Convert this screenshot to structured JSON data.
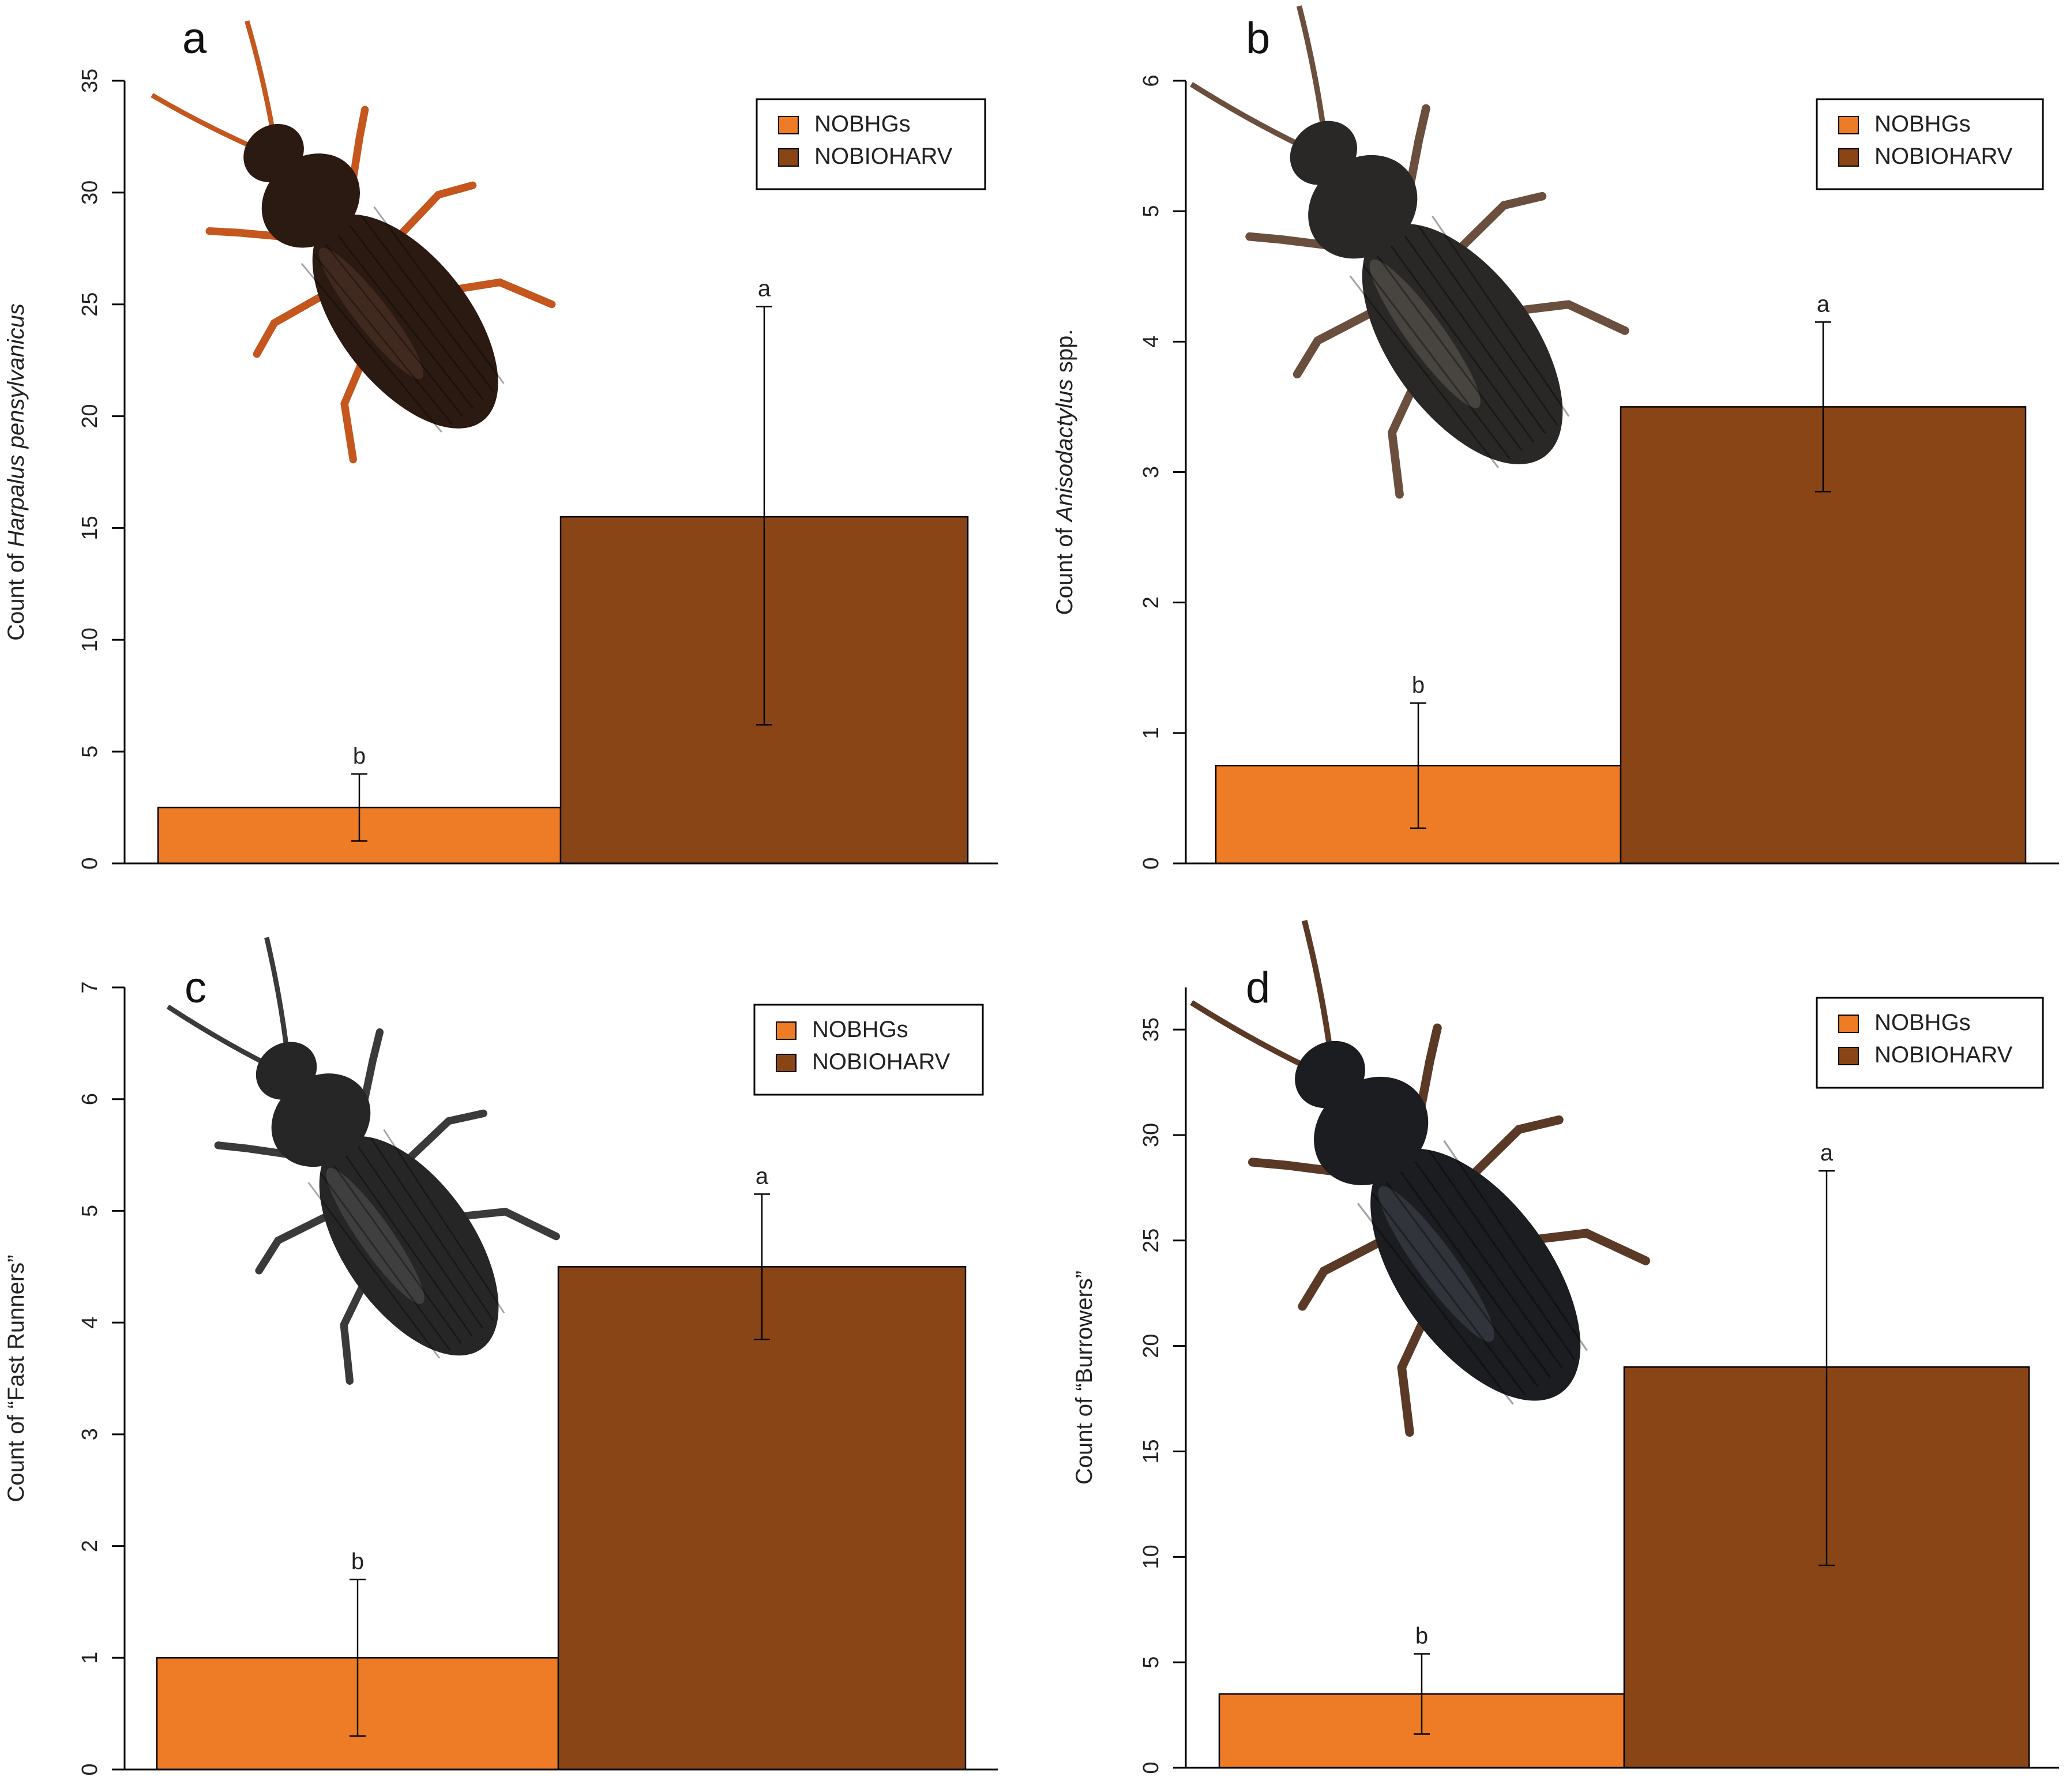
{
  "figure": {
    "colors": {
      "nobhgs": "#EE7B26",
      "nobioharv": "#8A4516",
      "axis": "#000000"
    }
  },
  "chart_data": [
    {
      "type": "bar",
      "panel": "a",
      "ylabel_prefix": "Count of ",
      "ylabel_italic": "Harpalus pensylvanicus",
      "ylabel_suffix": "",
      "categories": [
        "NOBHGs",
        "NOBIOHARV"
      ],
      "values": [
        2.5,
        15.5
      ],
      "errors_low": [
        1.0,
        6.2
      ],
      "errors_high": [
        4.0,
        24.9
      ],
      "significance": [
        "b",
        "a"
      ],
      "ylim": [
        0,
        35
      ],
      "yticks": [
        0,
        5,
        10,
        15,
        20,
        25,
        30,
        35
      ],
      "legend": [
        "NOBHGs",
        "NOBIOHARV"
      ],
      "legend_position": "top-right",
      "beetle_icon": "harpalus-beetle-icon"
    },
    {
      "type": "bar",
      "panel": "b",
      "ylabel_prefix": "Count of ",
      "ylabel_italic": "Anisodactylus",
      "ylabel_suffix": " spp.",
      "categories": [
        "NOBHGs",
        "NOBIOHARV"
      ],
      "values": [
        0.75,
        3.5
      ],
      "errors_low": [
        0.27,
        2.85
      ],
      "errors_high": [
        1.23,
        4.15
      ],
      "significance": [
        "b",
        "a"
      ],
      "ylim": [
        0,
        6
      ],
      "yticks": [
        0,
        1,
        2,
        3,
        4,
        5,
        6
      ],
      "legend": [
        "NOBHGs",
        "NOBIOHARV"
      ],
      "legend_position": "top-right",
      "beetle_icon": "anisodactylus-beetle-icon"
    },
    {
      "type": "bar",
      "panel": "c",
      "ylabel_prefix": "Count of “Fast Runners”",
      "ylabel_italic": "",
      "ylabel_suffix": "",
      "categories": [
        "NOBHGs",
        "NOBIOHARV"
      ],
      "values": [
        1.0,
        4.5
      ],
      "errors_low": [
        0.3,
        3.85
      ],
      "errors_high": [
        1.7,
        5.15
      ],
      "significance": [
        "b",
        "a"
      ],
      "ylim": [
        0,
        7
      ],
      "yticks": [
        0,
        1,
        2,
        3,
        4,
        5,
        6,
        7
      ],
      "legend": [
        "NOBHGs",
        "NOBIOHARV"
      ],
      "legend_position": "top-right",
      "beetle_icon": "tiger-beetle-icon"
    },
    {
      "type": "bar",
      "panel": "d",
      "ylabel_prefix": "Count of “Burrowers”",
      "ylabel_italic": "",
      "ylabel_suffix": "",
      "categories": [
        "NOBHGs",
        "NOBIOHARV"
      ],
      "values": [
        3.5,
        19.0
      ],
      "errors_low": [
        1.6,
        9.6
      ],
      "errors_high": [
        5.4,
        28.3
      ],
      "significance": [
        "b",
        "a"
      ],
      "ylim": [
        0,
        37
      ],
      "yticks": [
        0,
        5,
        10,
        15,
        20,
        25,
        30,
        35
      ],
      "legend": [
        "NOBHGs",
        "NOBIOHARV"
      ],
      "legend_position": "top-right",
      "beetle_icon": "burrower-beetle-icon"
    }
  ]
}
